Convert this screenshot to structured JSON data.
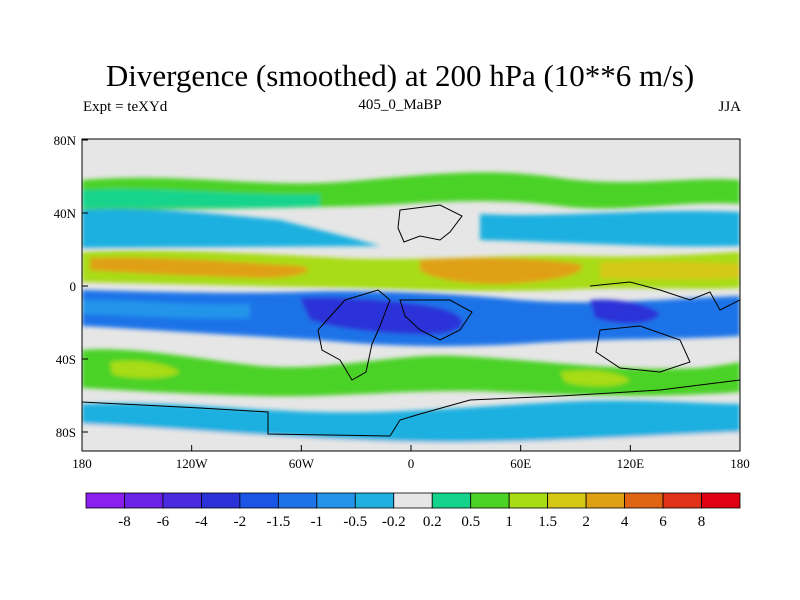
{
  "title": "Divergence (smoothed) at 200 hPa (10**6 m/s)",
  "subtitle_left": "Expt = teXYd",
  "subtitle_center": "405_0_MaBP",
  "subtitle_right": "JJA",
  "y_ticks": [
    "80N",
    "40N",
    "0",
    "40S",
    "80S"
  ],
  "x_ticks": [
    "180",
    "120W",
    "60W",
    "0",
    "60E",
    "120E",
    "180"
  ],
  "colorbar": {
    "colors": [
      "#8b1ff0",
      "#6a23e6",
      "#4b2be0",
      "#2a32d8",
      "#1b55e6",
      "#1f73e8",
      "#2394ea",
      "#1fb0e0",
      "#e6e6e6",
      "#14d48c",
      "#4cd225",
      "#a8dc14",
      "#d4c814",
      "#e0a014",
      "#e06414",
      "#e03218",
      "#e00014"
    ],
    "labels": [
      "-8",
      "-6",
      "-4",
      "-2",
      "-1.5",
      "-1",
      "-0.5",
      "-0.2",
      "0.2",
      "0.5",
      "1",
      "1.5",
      "2",
      "4",
      "6",
      "8"
    ]
  }
}
